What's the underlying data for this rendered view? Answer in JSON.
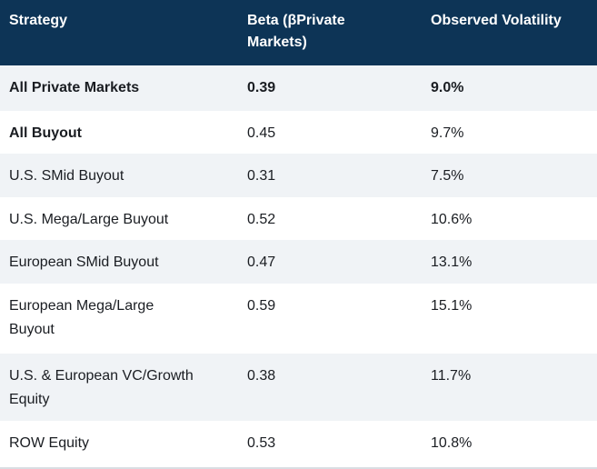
{
  "chart_data": {
    "type": "table",
    "columns": [
      "Strategy",
      "Beta (βPrivate Markets)",
      "Observed Volatility"
    ],
    "rows": [
      {
        "strategy": "All Private Markets",
        "beta": "0.39",
        "volatility": "9.0%",
        "emphasis": "all"
      },
      {
        "strategy": "All Buyout",
        "beta": "0.45",
        "volatility": "9.7%",
        "emphasis": "label"
      },
      {
        "strategy": "U.S. SMid Buyout",
        "beta": "0.31",
        "volatility": "7.5%",
        "emphasis": "none"
      },
      {
        "strategy": "U.S. Mega/Large Buyout",
        "beta": "0.52",
        "volatility": "10.6%",
        "emphasis": "none"
      },
      {
        "strategy": "European SMid Buyout",
        "beta": "0.47",
        "volatility": "13.1%",
        "emphasis": "none"
      },
      {
        "strategy": "European Mega/Large Buyout",
        "beta": "0.59",
        "volatility": "15.1%",
        "emphasis": "none"
      },
      {
        "strategy": "U.S. & European VC/Growth Equity",
        "beta": "0.38",
        "volatility": "11.7%",
        "emphasis": "none"
      },
      {
        "strategy": "ROW Equity",
        "beta": "0.53",
        "volatility": "10.8%",
        "emphasis": "none"
      }
    ],
    "layout": {
      "zebra_striping": true,
      "first_data_row_bold": true
    },
    "colors": {
      "header_bg": "#0d3456",
      "header_text": "#ffffff",
      "row_bg": "#ffffff",
      "row_alt_bg": "#f0f3f6",
      "body_text": "#1a1d22",
      "bottom_border": "#d9dee3"
    }
  }
}
